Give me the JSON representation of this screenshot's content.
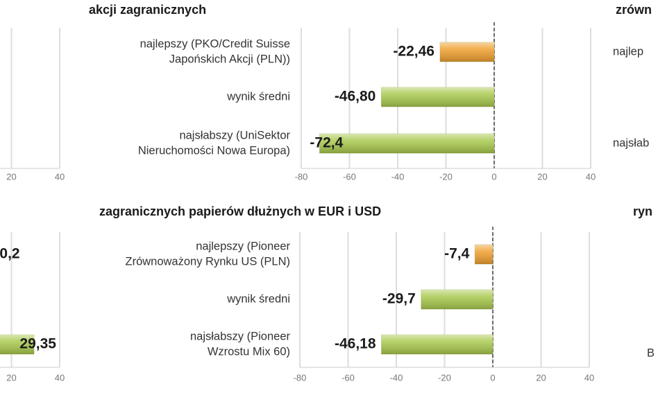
{
  "chart_data": [
    {
      "type": "bar",
      "xlim": [
        -80,
        40
      ],
      "xticks": [
        20,
        40
      ],
      "grid": true
    },
    {
      "type": "bar",
      "title": "akcji zagranicznych",
      "categories": [
        [
          "najlepszy (PKO/Credit Suisse",
          "Japońskich Akcji (PLN))"
        ],
        [
          "wynik średni"
        ],
        [
          "najsłabszy (UniSektor",
          "Nieruchomości Nowa Europa)"
        ]
      ],
      "values": [
        -22.46,
        -46.8,
        -72.4
      ],
      "value_labels": [
        "-22,46",
        "-46,80",
        "-72,4"
      ],
      "colors": [
        "#f0a030",
        "#a9c94e",
        "#a9c94e"
      ],
      "xlim": [
        -80,
        40
      ],
      "xticks": [
        -80,
        -60,
        -40,
        -20,
        0,
        20,
        40
      ],
      "grid": true
    },
    {
      "type": "bar",
      "title": "zrówn",
      "categories": [
        [
          "najlep"
        ],
        null,
        [
          "najsłab"
        ]
      ]
    },
    {
      "type": "bar",
      "annotations": [
        "0,2"
      ],
      "categories": [
        null,
        null,
        null
      ],
      "values": [
        null,
        null,
        29.35
      ],
      "value_labels": [
        null,
        null,
        "29,35"
      ],
      "colors": [
        null,
        null,
        "#a9c94e"
      ],
      "xlim": [
        -80,
        40
      ],
      "xticks": [
        20,
        40
      ],
      "grid": true
    },
    {
      "type": "bar",
      "title": "zagranicznych papierów dłużnych w EUR i USD",
      "categories": [
        [
          "najlepszy (Pioneer",
          "Zrównoważony Rynku US (PLN)"
        ],
        [
          "wynik średni"
        ],
        [
          "najsłabszy (Pioneer",
          "Wzrostu Mix 60)"
        ]
      ],
      "values": [
        -7.4,
        -29.7,
        -46.18
      ],
      "value_labels": [
        "-7,4",
        "-29,7",
        "-46,18"
      ],
      "colors": [
        "#f0a030",
        "#a9c94e",
        "#a9c94e"
      ],
      "xlim": [
        -80,
        40
      ],
      "xticks": [
        -80,
        -60,
        -40,
        -20,
        0,
        20,
        40
      ],
      "grid": true
    },
    {
      "type": "bar",
      "title": "ryn",
      "categories": [
        null,
        null,
        [
          "B"
        ]
      ]
    }
  ]
}
